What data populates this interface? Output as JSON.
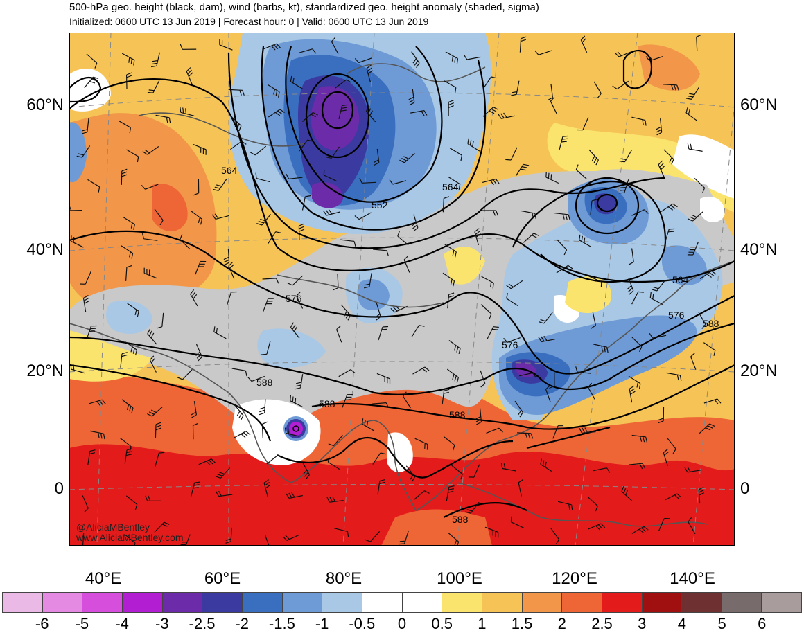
{
  "title": "500-hPa geo. height (black, dam), wind (barbs, kt), standardized geo. height anomaly (shaded, sigma)",
  "subtitle": "Initialized: 0600 UTC 13 Jun 2019 | Forecast hour: 0 | Valid: 0600 UTC 13 Jun 2019",
  "lat_labels": [
    "60°N",
    "40°N",
    "20°N",
    "0"
  ],
  "lon_labels": [
    "40°E",
    "60°E",
    "80°E",
    "100°E",
    "120°E",
    "140°E"
  ],
  "contour_labels": [
    "564",
    "552",
    "564",
    "576",
    "564",
    "576",
    "588",
    "576",
    "588",
    "588",
    "588",
    "588"
  ],
  "watermark": {
    "handle": "@AliciaMBentley",
    "site": "www.AliciaMBentley.com"
  },
  "colorbar": {
    "ticks": [
      "-6",
      "-5",
      "-4",
      "-3",
      "-2.5",
      "-2",
      "-1.5",
      "-1",
      "-0.5",
      "0",
      "0.5",
      "1",
      "1.5",
      "2",
      "2.5",
      "3",
      "4",
      "5",
      "6"
    ],
    "colors": [
      "#eab9e6",
      "#e58ae3",
      "#d64fdc",
      "#b21fd2",
      "#6c2ba8",
      "#3a3aa1",
      "#3a6fc0",
      "#6e9bd6",
      "#a8c8e6",
      "#ffffff",
      "#ffffff",
      "#fae46e",
      "#f6c456",
      "#f2964a",
      "#ee6636",
      "#e41b1b",
      "#a01010",
      "#6e3030",
      "#776b6b",
      "#a89c9c"
    ]
  }
}
